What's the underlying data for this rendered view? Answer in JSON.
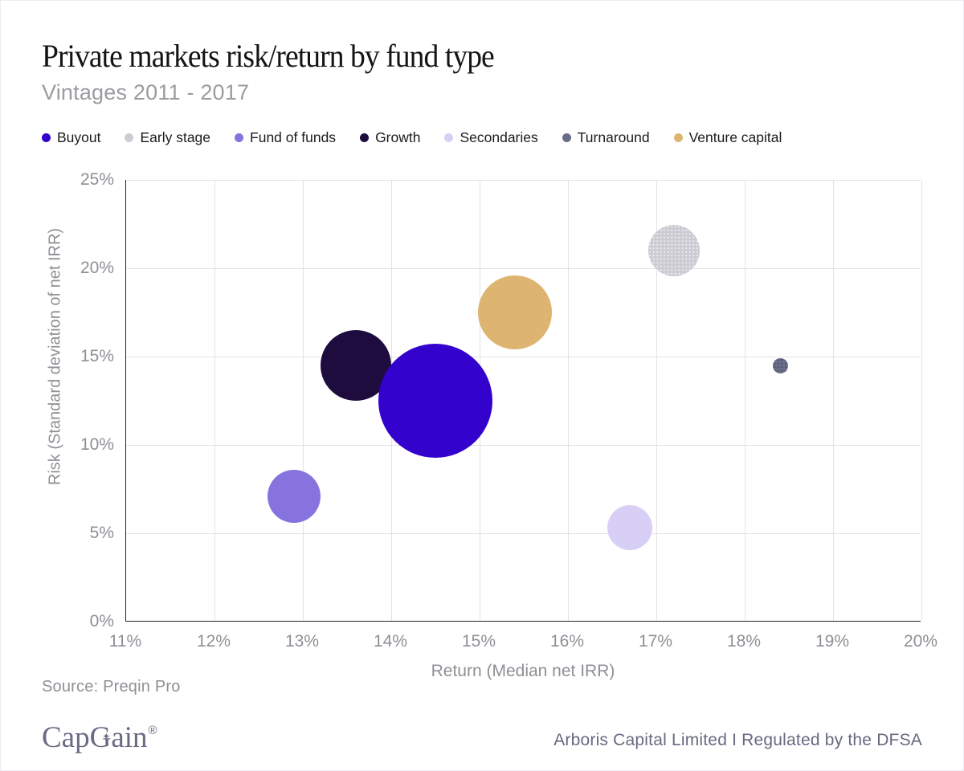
{
  "header": {
    "title": "Private markets risk/return by fund type",
    "subtitle": "Vintages 2011 - 2017"
  },
  "legend": [
    {
      "label": "Buyout",
      "color": "#3303cd",
      "pattern": "solid"
    },
    {
      "label": "Early stage",
      "color": "#cdccd4",
      "pattern": "dots-light"
    },
    {
      "label": "Fund of funds",
      "color": "#8773de",
      "pattern": "solid"
    },
    {
      "label": "Growth",
      "color": "#1e0c3e",
      "pattern": "solid"
    },
    {
      "label": "Secondaries",
      "color": "#d7cff5",
      "pattern": "solid"
    },
    {
      "label": "Turnaround",
      "color": "#6a6d87",
      "pattern": "dots-dark"
    },
    {
      "label": "Venture capital",
      "color": "#ddb470",
      "pattern": "solid"
    }
  ],
  "chart_data": {
    "type": "scatter",
    "subtype": "bubble",
    "title": "Private markets risk/return by fund type",
    "subtitle": "Vintages 2011 - 2017",
    "xlabel": "Return (Median net IRR)",
    "ylabel": "Risk (Standard deviation of net IRR)",
    "xlim": [
      11,
      20
    ],
    "ylim": [
      0,
      25
    ],
    "x_ticks": [
      11,
      12,
      13,
      14,
      15,
      16,
      17,
      18,
      19,
      20
    ],
    "y_ticks": [
      0,
      5,
      10,
      15,
      20,
      25
    ],
    "tick_format": "percent",
    "grid": true,
    "legend_position": "top",
    "series": [
      {
        "name": "Buyout",
        "x": 14.5,
        "y": 12.5,
        "radius_px": 71,
        "color": "#3303cd",
        "pattern": "solid"
      },
      {
        "name": "Early stage",
        "x": 17.2,
        "y": 21.0,
        "radius_px": 32,
        "color": "#cdccd4",
        "pattern": "dots-light"
      },
      {
        "name": "Fund of funds",
        "x": 12.9,
        "y": 7.1,
        "radius_px": 33,
        "color": "#8773de",
        "pattern": "solid"
      },
      {
        "name": "Growth",
        "x": 13.6,
        "y": 14.5,
        "radius_px": 44,
        "color": "#1e0c3e",
        "pattern": "solid"
      },
      {
        "name": "Secondaries",
        "x": 16.7,
        "y": 5.3,
        "radius_px": 28,
        "color": "#d7cff5",
        "pattern": "solid"
      },
      {
        "name": "Turnaround",
        "x": 18.4,
        "y": 14.5,
        "radius_px": 9.5,
        "color": "#6a6d87",
        "pattern": "dots-dark"
      },
      {
        "name": "Venture capital",
        "x": 15.4,
        "y": 17.5,
        "radius_px": 46,
        "color": "#ddb470",
        "pattern": "solid"
      }
    ],
    "draw_order": [
      "Early stage",
      "Fund of funds",
      "Growth",
      "Secondaries",
      "Turnaround",
      "Venture capital",
      "Buyout"
    ]
  },
  "footer": {
    "source": "Source: Preqin Pro",
    "logo": {
      "cap": "Cap",
      "g": "G",
      "ain": "ain",
      "reg": "®",
      "star_icon": "✦"
    },
    "disclaimer": "Arboris Capital Limited I Regulated by the DFSA"
  },
  "colors": {
    "axis_line": "#26262b",
    "gridline": "#e3e3e7",
    "tick_text": "#8f8f96",
    "title_text": "#141414",
    "subtitle_text": "#9b9ba0",
    "brand_slate": "#696b85"
  }
}
